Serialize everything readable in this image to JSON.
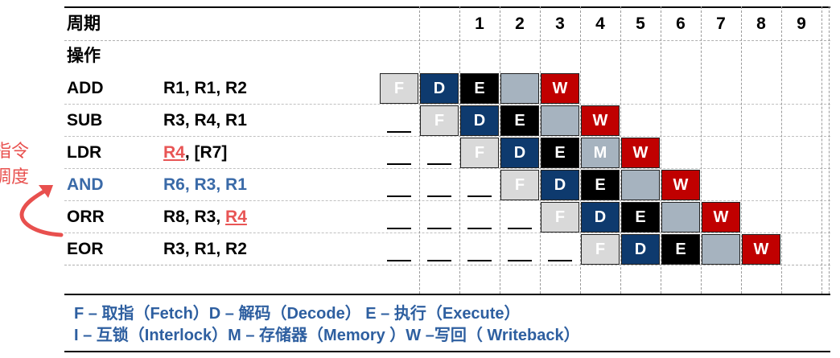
{
  "header": {
    "cycle_label": "周期",
    "op_label": "操作"
  },
  "cycles": [
    "1",
    "2",
    "3",
    "4",
    "5",
    "6",
    "7",
    "8",
    "9"
  ],
  "side_note": {
    "line1": "指令",
    "line2": "调度"
  },
  "instructions": [
    {
      "mnemonic": "ADD",
      "operands": [
        {
          "t": "R1, R1, R2",
          "h": false
        }
      ],
      "color": "#000000",
      "stages": [
        [
          "F",
          "F"
        ],
        [
          "D",
          "D"
        ],
        [
          "E",
          "E"
        ],
        [
          "I",
          ""
        ],
        [
          "W",
          "W"
        ]
      ],
      "start": -1,
      "pre_dashes": 0
    },
    {
      "mnemonic": "SUB",
      "operands": [
        {
          "t": "R3, R4, R1",
          "h": false
        }
      ],
      "color": "#000000",
      "stages": [
        [
          "F",
          "F"
        ],
        [
          "D",
          "D"
        ],
        [
          "E",
          "E"
        ],
        [
          "I",
          ""
        ],
        [
          "W",
          "W"
        ]
      ],
      "start": 0,
      "pre_dashes": 1
    },
    {
      "mnemonic": "LDR",
      "operands": [
        {
          "t": "R4",
          "h": true
        },
        {
          "t": ", [R7]",
          "h": false
        }
      ],
      "color": "#000000",
      "stages": [
        [
          "F",
          "F"
        ],
        [
          "D",
          "D"
        ],
        [
          "E",
          "E"
        ],
        [
          "M",
          "M"
        ],
        [
          "W",
          "W"
        ]
      ],
      "start": 1,
      "pre_dashes": 2
    },
    {
      "mnemonic": "AND",
      "operands": [
        {
          "t": "R6, R3, R1",
          "h": false
        }
      ],
      "color": "#3a6aa8",
      "stages": [
        [
          "F",
          "F"
        ],
        [
          "D",
          "D"
        ],
        [
          "E",
          "E"
        ],
        [
          "I",
          ""
        ],
        [
          "W",
          "W"
        ]
      ],
      "start": 2,
      "pre_dashes": 3
    },
    {
      "mnemonic": "ORR",
      "operands": [
        {
          "t": "R8, R3, ",
          "h": false
        },
        {
          "t": "R4",
          "h": true
        }
      ],
      "color": "#000000",
      "stages": [
        [
          "F",
          "F"
        ],
        [
          "D",
          "D"
        ],
        [
          "E",
          "E"
        ],
        [
          "I",
          ""
        ],
        [
          "W",
          "W"
        ]
      ],
      "start": 3,
      "pre_dashes": 4
    },
    {
      "mnemonic": "EOR",
      "operands": [
        {
          "t": "R3, R1, R2",
          "h": false
        }
      ],
      "color": "#000000",
      "stages": [
        [
          "F",
          "F"
        ],
        [
          "D",
          "D"
        ],
        [
          "E",
          "E"
        ],
        [
          "I",
          ""
        ],
        [
          "W",
          "W"
        ]
      ],
      "start": 4,
      "pre_dashes": 5
    }
  ],
  "legend": {
    "line1": "F – 取指（Fetch）D – 解码（Decode） E – 执行（Execute）",
    "line2": "I – 互锁（Interlock）M – 存储器（Memory ）W –写回（ Writeback）"
  },
  "colors": {
    "fetch": "#d9d9d9",
    "decode": "#0e3a6e",
    "execute": "#000000",
    "memory": "#a6b3bf",
    "interlock": "#a6b3bf",
    "writeback": "#c00000",
    "note": "#e8504e",
    "legend_text": "#2e5fa0"
  }
}
